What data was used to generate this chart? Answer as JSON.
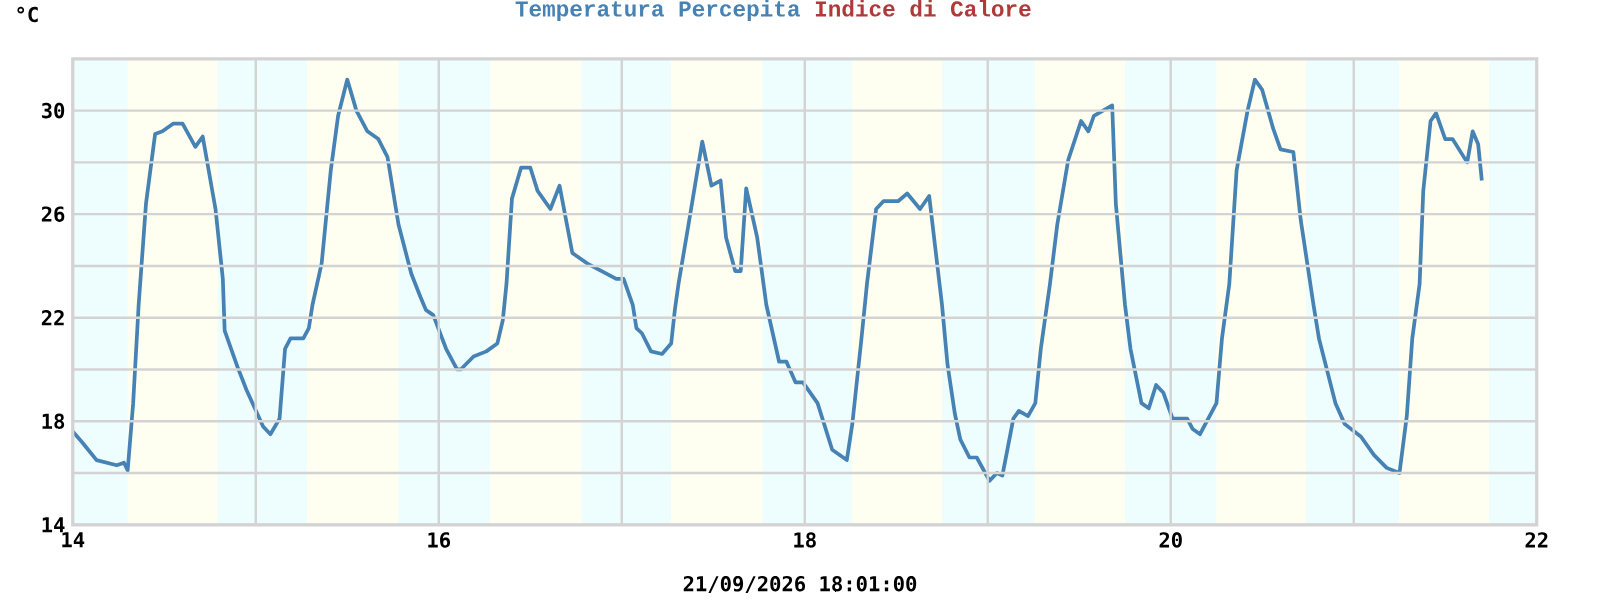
{
  "chart_data": {
    "type": "line",
    "xlabel": "21/09/2026 18:01:00",
    "ylabel": "°C",
    "x": [
      14.0,
      14.05,
      14.13,
      14.24,
      14.28,
      14.3,
      14.33,
      14.36,
      14.4,
      14.45,
      14.49,
      14.55,
      14.6,
      14.67,
      14.71,
      14.78,
      14.82,
      14.83,
      14.9,
      14.95,
      15.04,
      15.08,
      15.13,
      15.16,
      15.19,
      15.26,
      15.29,
      15.31,
      15.36,
      15.41,
      15.45,
      15.5,
      15.55,
      15.61,
      15.67,
      15.72,
      15.78,
      15.85,
      15.9,
      15.93,
      15.97,
      16.04,
      16.1,
      16.12,
      16.19,
      16.26,
      16.32,
      16.35,
      16.37,
      16.4,
      16.45,
      16.5,
      16.54,
      16.61,
      16.66,
      16.73,
      16.81,
      16.97,
      17.01,
      17.06,
      17.08,
      17.11,
      17.16,
      17.22,
      17.27,
      17.29,
      17.31,
      17.36,
      17.44,
      17.49,
      17.54,
      17.57,
      17.62,
      17.65,
      17.68,
      17.74,
      17.79,
      17.86,
      17.9,
      17.95,
      17.99,
      18.07,
      18.15,
      18.23,
      18.26,
      18.31,
      18.34,
      18.39,
      18.43,
      18.51,
      18.56,
      18.63,
      18.68,
      18.72,
      18.75,
      18.78,
      18.82,
      18.85,
      18.9,
      18.94,
      19.01,
      19.05,
      19.08,
      19.14,
      19.17,
      19.22,
      19.26,
      19.29,
      19.34,
      19.38,
      19.44,
      19.51,
      19.55,
      19.58,
      19.68,
      19.7,
      19.75,
      19.78,
      19.84,
      19.88,
      19.92,
      19.96,
      20.01,
      20.09,
      20.12,
      20.16,
      20.25,
      20.28,
      20.32,
      20.36,
      20.42,
      20.46,
      20.5,
      20.56,
      20.6,
      20.67,
      20.71,
      20.78,
      20.81,
      20.9,
      20.95,
      21.04,
      21.11,
      21.18,
      21.25,
      21.29,
      21.32,
      21.36,
      21.38,
      21.42,
      21.45,
      21.5,
      21.54,
      21.62,
      21.65,
      21.68,
      21.7
    ],
    "series": [
      {
        "name": "Temperatura Percepita",
        "color": "#4682b4",
        "values": [
          17.6,
          17.2,
          16.5,
          16.3,
          16.4,
          16.1,
          18.7,
          22.5,
          26.4,
          29.1,
          29.2,
          29.5,
          29.5,
          28.6,
          29.0,
          26.2,
          23.5,
          21.5,
          20.1,
          19.2,
          17.8,
          17.5,
          18.1,
          20.8,
          21.2,
          21.2,
          21.6,
          22.5,
          24.1,
          27.7,
          29.8,
          31.2,
          30.0,
          29.2,
          28.9,
          28.2,
          25.6,
          23.7,
          22.8,
          22.3,
          22.1,
          20.8,
          20.0,
          20.0,
          20.5,
          20.7,
          21.0,
          21.9,
          23.3,
          26.6,
          27.8,
          27.8,
          26.9,
          26.2,
          27.1,
          24.5,
          24.1,
          23.5,
          23.5,
          22.5,
          21.6,
          21.4,
          20.7,
          20.6,
          21.0,
          22.3,
          23.3,
          25.4,
          28.8,
          27.1,
          27.3,
          25.1,
          23.8,
          23.8,
          27.0,
          25.1,
          22.5,
          20.3,
          20.3,
          19.5,
          19.5,
          18.7,
          16.9,
          16.5,
          17.9,
          21.2,
          23.3,
          26.2,
          26.5,
          26.5,
          26.8,
          26.2,
          26.7,
          24.3,
          22.5,
          20.2,
          18.3,
          17.3,
          16.6,
          16.6,
          15.7,
          16.0,
          15.9,
          18.1,
          18.4,
          18.2,
          18.7,
          20.8,
          23.3,
          25.6,
          28.1,
          29.6,
          29.2,
          29.8,
          30.2,
          26.4,
          22.5,
          20.8,
          18.7,
          18.5,
          19.4,
          19.1,
          18.1,
          18.1,
          17.7,
          17.5,
          18.7,
          21.2,
          23.3,
          27.7,
          30.0,
          31.2,
          30.8,
          29.3,
          28.5,
          28.4,
          25.8,
          22.5,
          21.2,
          18.7,
          17.9,
          17.4,
          16.7,
          16.2,
          16.0,
          18.2,
          21.2,
          23.3,
          26.9,
          29.6,
          29.9,
          28.9,
          28.9,
          28.0,
          29.2,
          28.7,
          27.3
        ]
      },
      {
        "name": "Indice di Calore",
        "color": "#b03a3a",
        "values": [
          null,
          null,
          null,
          null,
          null,
          null,
          null,
          null,
          null,
          null,
          null,
          null,
          null,
          null,
          null,
          null,
          null,
          null,
          null,
          null,
          null,
          null,
          null,
          null,
          null,
          null,
          null,
          null,
          null,
          null,
          null,
          null,
          null,
          null,
          null,
          null,
          null,
          null,
          null,
          null,
          null,
          null,
          null,
          null,
          null,
          null,
          null,
          null,
          null,
          null,
          null,
          null,
          null,
          null,
          null,
          null,
          null,
          null,
          null,
          null,
          null,
          null,
          null,
          null,
          null,
          null,
          null,
          null,
          null,
          null,
          null,
          null,
          null,
          null,
          null,
          null,
          null,
          null,
          null,
          null,
          null,
          null,
          null,
          null,
          null,
          null,
          null,
          null,
          null,
          null,
          null,
          null,
          null,
          null,
          null,
          null,
          null,
          null,
          null,
          null,
          null,
          null,
          null,
          null,
          null,
          null,
          null,
          null,
          null,
          null,
          null,
          null,
          null,
          null,
          null,
          null,
          null,
          null,
          null,
          null,
          null,
          null,
          null,
          null,
          null,
          null,
          null,
          null,
          null,
          null,
          null,
          null,
          null,
          null,
          null,
          null,
          null,
          null,
          null,
          null,
          null,
          null,
          null,
          null,
          null,
          null,
          null,
          null,
          null,
          null,
          null,
          null,
          null,
          null,
          null,
          null,
          null
        ]
      }
    ],
    "xlim": [
      14,
      22
    ],
    "ylim": [
      14,
      32
    ],
    "xticks": [
      14,
      {
        "value": 15,
        "label": null
      },
      16,
      {
        "value": 17,
        "label": null
      },
      18,
      {
        "value": 19,
        "label": null
      },
      20,
      {
        "value": 21,
        "label": null
      },
      22
    ],
    "yticks": [
      14,
      {
        "value": 16,
        "label": null
      },
      18,
      {
        "value": 20,
        "label": null
      },
      22,
      {
        "value": 24,
        "label": null
      },
      26,
      {
        "value": 28,
        "label": null
      },
      30
    ],
    "bands": [
      {
        "axis": "x",
        "from": 14,
        "to": 14.3,
        "color": "#eefdfd"
      },
      {
        "axis": "x",
        "from": 14.3,
        "to": 14.79,
        "color": "#fefff0"
      },
      {
        "axis": "x",
        "from": 14.79,
        "to": 15.28,
        "color": "#eefdfd"
      },
      {
        "axis": "x",
        "from": 15.28,
        "to": 15.78,
        "color": "#fefff0"
      },
      {
        "axis": "x",
        "from": 15.78,
        "to": 16.28,
        "color": "#eefdfd"
      },
      {
        "axis": "x",
        "from": 16.28,
        "to": 16.78,
        "color": "#fefff0"
      },
      {
        "axis": "x",
        "from": 16.78,
        "to": 17.27,
        "color": "#eefdfd"
      },
      {
        "axis": "x",
        "from": 17.27,
        "to": 17.77,
        "color": "#fefff0"
      },
      {
        "axis": "x",
        "from": 17.77,
        "to": 18.26,
        "color": "#eefdfd"
      },
      {
        "axis": "x",
        "from": 18.26,
        "to": 18.75,
        "color": "#fefff0"
      },
      {
        "axis": "x",
        "from": 18.75,
        "to": 19.26,
        "color": "#eefdfd"
      },
      {
        "axis": "x",
        "from": 19.26,
        "to": 19.75,
        "color": "#fefff0"
      },
      {
        "axis": "x",
        "from": 19.75,
        "to": 20.25,
        "color": "#eefdfd"
      },
      {
        "axis": "x",
        "from": 20.25,
        "to": 20.74,
        "color": "#fefff0"
      },
      {
        "axis": "x",
        "from": 20.74,
        "to": 21.25,
        "color": "#eefdfd"
      },
      {
        "axis": "x",
        "from": 21.25,
        "to": 21.74,
        "color": "#fefff0"
      },
      {
        "axis": "x",
        "from": 21.74,
        "to": 22,
        "color": "#eefdfd"
      }
    ],
    "grid": true,
    "legend": "top",
    "marker": "none",
    "line_style": "solid"
  }
}
